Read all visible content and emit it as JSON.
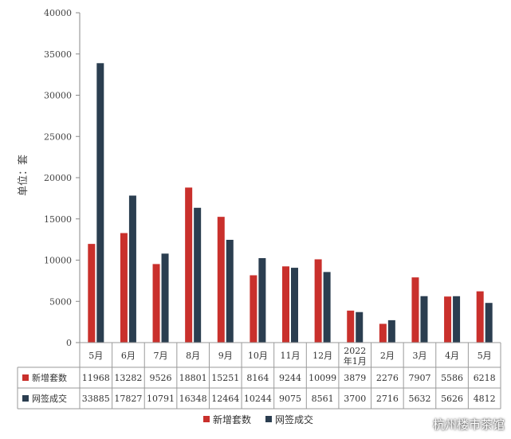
{
  "chart_data": {
    "type": "bar",
    "title": "",
    "ylabel": "单位：套",
    "ylim": [
      0,
      40000
    ],
    "yticks": [
      0,
      5000,
      10000,
      15000,
      20000,
      25000,
      30000,
      35000,
      40000
    ],
    "categories": [
      "5月",
      "6月",
      "7月",
      "8月",
      "9月",
      "10月",
      "11月",
      "12月",
      "2022\n年1月",
      "2月",
      "3月",
      "4月",
      "5月"
    ],
    "series": [
      {
        "name": "新增套数",
        "color": "#c9302c",
        "values": [
          11968,
          13282,
          9526,
          18801,
          15251,
          8164,
          9244,
          10099,
          3879,
          2276,
          7907,
          5586,
          6218
        ]
      },
      {
        "name": "网签成交",
        "color": "#2b3e50",
        "values": [
          33885,
          17827,
          10791,
          16348,
          12464,
          10244,
          9075,
          8561,
          3700,
          2716,
          5632,
          5626,
          4812
        ]
      }
    ],
    "legend": "bottom",
    "data_table": true
  },
  "watermark": "杭州楼市茶馆"
}
